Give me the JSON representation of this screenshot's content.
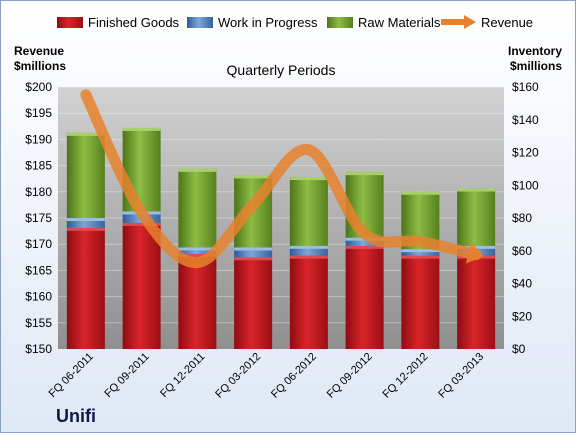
{
  "company": "Unifi",
  "colors": {
    "finished": "#c0141b",
    "wip": "#4a78b8",
    "raw": "#6f9a2c",
    "revenue": "#e8812d"
  },
  "chart_data": {
    "type": "bar",
    "stacked": true,
    "title": "Quarterly Periods",
    "left_axis_label_line1": "Revenue",
    "left_axis_label_line2": "$millions",
    "right_axis_label_line1": "Inventory",
    "right_axis_label_line2": "$millions",
    "categories": [
      "FQ 06-2011",
      "FQ 09-2011",
      "FQ 12-2011",
      "FQ 03-2012",
      "FQ 06-2012",
      "FQ 09-2012",
      "FQ 12-2012",
      "FQ 03-2013"
    ],
    "series": [
      {
        "name": "Finished Goods",
        "axis": "right",
        "values": [
          74,
          77,
          58,
          56,
          57,
          63,
          57,
          57
        ]
      },
      {
        "name": "Work in Progress",
        "axis": "right",
        "values": [
          6,
          7,
          4,
          6,
          6,
          5,
          4,
          6
        ]
      },
      {
        "name": "Raw Materials",
        "axis": "right",
        "values": [
          52,
          51,
          48,
          44,
          42,
          40,
          35,
          35
        ]
      },
      {
        "name": "Revenue",
        "axis": "left",
        "type": "line",
        "values": [
          198.5,
          176,
          166.5,
          177.5,
          188,
          172,
          170.5,
          168
        ]
      }
    ],
    "left_ylim": [
      150,
      200
    ],
    "right_ylim": [
      0,
      160
    ],
    "left_ticks": [
      "$150",
      "$155",
      "$160",
      "$165",
      "$170",
      "$175",
      "$180",
      "$185",
      "$190",
      "$195",
      "$200"
    ],
    "right_ticks": [
      "$0",
      "$20",
      "$40",
      "$60",
      "$80",
      "$100",
      "$120",
      "$140",
      "$160"
    ],
    "legend_position": "top",
    "grid": true
  }
}
